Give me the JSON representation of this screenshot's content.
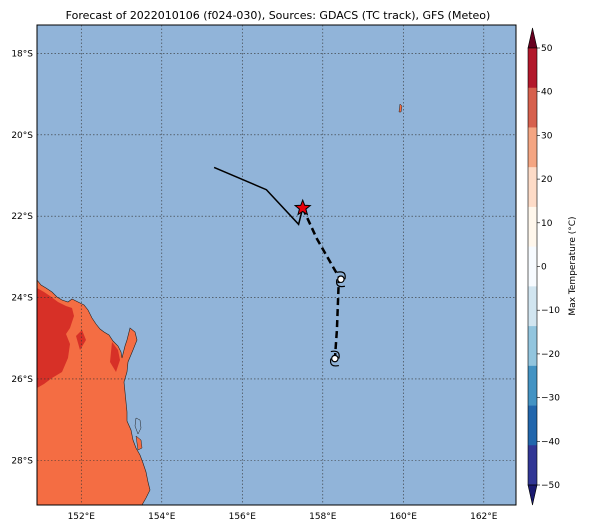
{
  "title": "Forecast of 2022010106 (f024-030), Sources: GDACS (TC track), GFS (Meteo)",
  "map": {
    "ocean_color": "#91b4d9",
    "land_color": "#f46d43",
    "land_warm_color": "#d73027",
    "grid": true,
    "lon_range": [
      150.9,
      162.8
    ],
    "lat_range": [
      -29.1,
      -17.3
    ],
    "lon_ticks": [
      "152°E",
      "154°E",
      "156°E",
      "158°E",
      "160°E",
      "162°E"
    ],
    "lat_ticks": [
      "18°S",
      "20°S",
      "22°S",
      "24°S",
      "26°S",
      "28°S"
    ]
  },
  "track": {
    "past_line": [
      [
        155.3,
        -20.8
      ],
      [
        156.6,
        -21.35
      ],
      [
        157.4,
        -22.2
      ],
      [
        157.5,
        -21.8
      ]
    ],
    "forecast_line": [
      [
        157.5,
        -21.8
      ],
      [
        157.85,
        -22.55
      ],
      [
        158.4,
        -23.5
      ],
      [
        158.35,
        -24.8
      ],
      [
        158.3,
        -25.5
      ]
    ],
    "current_position": [
      157.5,
      -21.8
    ],
    "forecast_positions": [
      [
        158.45,
        -23.55
      ],
      [
        158.3,
        -25.5
      ]
    ]
  },
  "colorbar": {
    "label": "Max Temperature (°C)",
    "ticks": [
      "50",
      "40",
      "30",
      "20",
      "10",
      "0",
      "−10",
      "−20",
      "−30",
      "−40",
      "−50"
    ],
    "colors": [
      "#67001f",
      "#b2182b",
      "#d6604d",
      "#f4a582",
      "#fddbc7",
      "#fff7ec",
      "#f7fbff",
      "#d1e5f0",
      "#92c5de",
      "#4393c3",
      "#2166ac",
      "#313695",
      "#1a1a70"
    ]
  }
}
